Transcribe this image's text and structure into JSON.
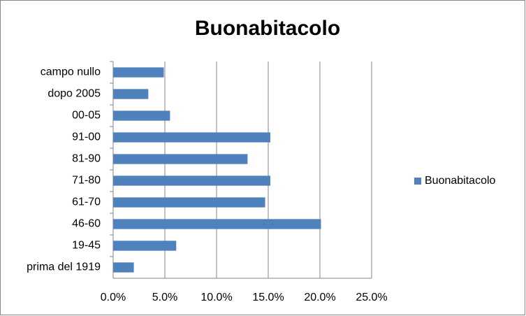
{
  "chart_data": {
    "type": "hbar",
    "title": "Buonabitacolo",
    "categories": [
      "campo nullo",
      "dopo 2005",
      "00-05",
      "91-00",
      "81-90",
      "71-80",
      "61-70",
      "46-60",
      "19-45",
      "prima del 1919"
    ],
    "series": [
      {
        "name": "Buonabitacolo",
        "color": "#4f81bd",
        "values": [
          4.9,
          3.4,
          5.5,
          15.2,
          13.0,
          15.2,
          14.7,
          20.1,
          6.1,
          2.0
        ]
      }
    ],
    "xlim": [
      0,
      25
    ],
    "xticks": [
      {
        "value": 0,
        "label": "0.0%"
      },
      {
        "value": 5,
        "label": "5.0%"
      },
      {
        "value": 10,
        "label": "10.0%"
      },
      {
        "value": 15,
        "label": "15.0%"
      },
      {
        "value": 20,
        "label": "20.0%"
      },
      {
        "value": 25,
        "label": "25.0%"
      }
    ],
    "grid": true,
    "legend": "right"
  }
}
